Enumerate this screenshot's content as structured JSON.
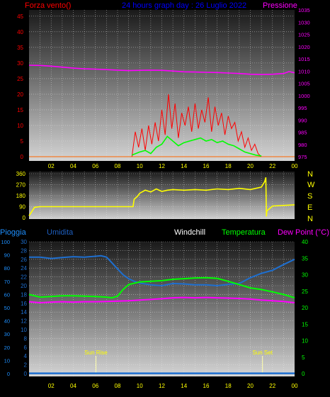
{
  "colors": {
    "wind": "#ff0000",
    "gust": "#00ff00",
    "pressure": "#ff00ff",
    "direction": "#ffff00",
    "humidity": "#1e6fd0",
    "windchill": "#ffffff",
    "temperature": "#00ff00",
    "dewpoint": "#ff00ff",
    "rain": "#1e6fd0",
    "title": "#0000ff",
    "grid": "#e8e8e8"
  },
  "chart_data": [
    {
      "type": "line",
      "panel": "wind-pressure",
      "title": "24 hours graph day : 26 Luglio 2022",
      "left_label": "Forza vento()",
      "right_label": "Pressione",
      "x_ticks": [
        "02",
        "04",
        "06",
        "08",
        "10",
        "12",
        "14",
        "16",
        "18",
        "20",
        "22",
        "00"
      ],
      "y_left_ticks": [
        "0",
        "5",
        "10",
        "15",
        "20",
        "25",
        "30",
        "35",
        "40",
        "45"
      ],
      "y_right_ticks": [
        "975",
        "980",
        "985",
        "990",
        "995",
        "1000",
        "1005",
        "1010",
        "1015",
        "1020",
        "1025",
        "1030",
        "1035"
      ],
      "y_left_range": [
        0,
        47
      ],
      "y_right_range": [
        975,
        1035
      ],
      "x_range": [
        0,
        24
      ],
      "grid": true,
      "series": [
        {
          "key": "pressure",
          "axis": "right",
          "x": [
            0,
            1,
            2,
            3,
            4,
            5,
            6,
            7,
            8,
            9,
            10,
            11,
            12,
            13,
            14,
            15,
            16,
            17,
            18,
            19,
            20,
            21,
            22,
            23,
            23.5,
            24
          ],
          "values": [
            1012.4,
            1012.3,
            1012.0,
            1011.6,
            1011.2,
            1010.9,
            1010.8,
            1010.6,
            1010.4,
            1010.2,
            1010.3,
            1010.4,
            1010.3,
            1010.0,
            1009.7,
            1009.6,
            1009.5,
            1009.4,
            1009.2,
            1009.0,
            1008.7,
            1008.6,
            1008.7,
            1009.0,
            1009.8,
            1009.3
          ]
        },
        {
          "key": "wind",
          "axis": "left",
          "x": [
            9.3,
            9.6,
            9.9,
            10.2,
            10.5,
            10.8,
            11.1,
            11.4,
            11.7,
            12.0,
            12.3,
            12.6,
            12.9,
            13.2,
            13.5,
            13.8,
            14.1,
            14.4,
            14.7,
            15.0,
            15.3,
            15.6,
            15.9,
            16.2,
            16.5,
            16.8,
            17.1,
            17.4,
            17.7,
            18.0,
            18.3,
            18.6,
            18.9,
            19.2,
            19.5,
            19.8,
            20.1,
            20.4,
            20.7,
            21.0
          ],
          "values": [
            0,
            8,
            3,
            9,
            2,
            10,
            4,
            11,
            5,
            15,
            7,
            20,
            9,
            17,
            6,
            14,
            10,
            16,
            8,
            17,
            9,
            15,
            11,
            19,
            8,
            16,
            10,
            14,
            7,
            13,
            9,
            11,
            5,
            8,
            3,
            6,
            2,
            4,
            1,
            0
          ]
        },
        {
          "key": "gust",
          "axis": "left",
          "x": [
            9.3,
            10,
            10.5,
            11,
            11.5,
            12,
            12.5,
            13,
            13.5,
            14,
            14.5,
            15,
            15.5,
            16,
            16.5,
            17,
            17.5,
            18,
            18.5,
            19,
            19.5,
            20,
            20.5,
            21
          ],
          "values": [
            0.5,
            1.5,
            2.0,
            1.0,
            3.0,
            4.0,
            6.5,
            5.0,
            3.5,
            4.5,
            5.0,
            5.5,
            6.0,
            5.0,
            5.5,
            4.5,
            5.0,
            4.0,
            3.5,
            2.5,
            1.5,
            1.0,
            0.5,
            0.2
          ]
        }
      ]
    },
    {
      "type": "line",
      "panel": "direction",
      "x_ticks": [
        "02",
        "04",
        "06",
        "08",
        "10",
        "12",
        "14",
        "16",
        "18",
        "20",
        "22",
        "00"
      ],
      "y_ticks": [
        "0",
        "90",
        "180",
        "270",
        "360"
      ],
      "y_range": [
        0,
        360
      ],
      "x_range": [
        0,
        24
      ],
      "compass_labels": [
        "N",
        "W",
        "S",
        "E",
        "N"
      ],
      "grid": true,
      "series": [
        {
          "key": "direction",
          "x": [
            0,
            0.5,
            1,
            2,
            3,
            4,
            5,
            6,
            7,
            8,
            9,
            9.4,
            9.5,
            9.8,
            10,
            10.5,
            11,
            11.5,
            12,
            12.5,
            13,
            14,
            15,
            16,
            17,
            18,
            19,
            20,
            21,
            21.3,
            21.4,
            21.45,
            21.5,
            22,
            24
          ],
          "values": [
            15,
            85,
            90,
            90,
            90,
            90,
            90,
            90,
            90,
            90,
            90,
            90,
            150,
            175,
            200,
            225,
            210,
            235,
            215,
            225,
            230,
            225,
            230,
            225,
            235,
            230,
            240,
            230,
            250,
            295,
            330,
            10,
            55,
            95,
            105
          ]
        }
      ]
    },
    {
      "type": "line",
      "panel": "humidity-temperature",
      "left_labels": [
        "Pioggia",
        "Umidita"
      ],
      "right_labels": [
        "Windchill",
        "Temperatura",
        "Dew Point (°C)"
      ],
      "x_ticks": [
        "02",
        "04",
        "06",
        "08",
        "10",
        "12",
        "14",
        "16",
        "18",
        "20",
        "22",
        "00"
      ],
      "y_rain_ticks": [
        "0",
        "10",
        "20",
        "30",
        "40",
        "50",
        "60",
        "70",
        "80",
        "90",
        "100"
      ],
      "y_hum_ticks": [
        "0",
        "2",
        "4",
        "6",
        "8",
        "10",
        "12",
        "14",
        "16",
        "18",
        "20",
        "22",
        "24",
        "26",
        "28",
        "30"
      ],
      "y_temp_ticks": [
        "0",
        "5",
        "10",
        "15",
        "20",
        "25",
        "30",
        "35",
        "40"
      ],
      "y_rain_range": [
        0,
        100
      ],
      "y_hum_range": [
        0,
        30
      ],
      "y_temp_range": [
        0,
        40
      ],
      "x_range": [
        0,
        24
      ],
      "grid": true,
      "annotations": [
        {
          "text": "Sun Rise",
          "x": 6.05
        },
        {
          "text": "Sun Set",
          "x": 21.1
        }
      ],
      "series": [
        {
          "key": "humidity",
          "axis": "hum",
          "x": [
            0,
            1,
            2,
            3,
            4,
            5,
            6,
            6.5,
            7,
            7.5,
            8,
            8.5,
            9,
            9.5,
            10,
            11,
            12,
            13,
            14,
            15,
            16,
            17,
            18,
            19,
            20,
            21,
            22,
            23,
            24
          ],
          "values": [
            26.5,
            26.5,
            26.2,
            26.4,
            26.6,
            26.5,
            26.7,
            26.8,
            26.5,
            25.2,
            23.8,
            22.5,
            21.6,
            21.0,
            20.6,
            20.2,
            20.0,
            20.5,
            20.4,
            20.2,
            20.2,
            20.0,
            20.3,
            20.5,
            21.8,
            22.8,
            23.5,
            24.8,
            26.0
          ]
        },
        {
          "key": "temperature",
          "axis": "temp",
          "x": [
            0,
            1,
            2,
            3,
            4,
            5,
            6,
            7,
            7.5,
            8,
            8.5,
            9,
            10,
            11,
            12,
            13,
            14,
            15,
            16,
            17,
            18,
            19,
            20,
            21,
            22,
            23,
            24
          ],
          "values": [
            24.0,
            23.2,
            23.4,
            23.6,
            23.6,
            23.5,
            23.4,
            23.2,
            23.0,
            23.5,
            25.5,
            27.0,
            27.8,
            28.0,
            28.2,
            28.6,
            28.8,
            29.0,
            29.1,
            28.9,
            28.0,
            27.0,
            26.0,
            25.5,
            24.8,
            24.0,
            23.0
          ]
        },
        {
          "key": "dewpoint",
          "axis": "temp",
          "x": [
            0,
            1,
            2,
            3,
            4,
            5,
            6,
            7,
            8,
            9,
            10,
            11,
            12,
            13,
            14,
            15,
            16,
            17,
            18,
            19,
            20,
            21,
            22,
            23,
            24
          ],
          "values": [
            21.8,
            21.5,
            21.7,
            21.8,
            21.7,
            21.8,
            21.8,
            21.9,
            22.0,
            22.1,
            22.3,
            22.5,
            22.7,
            23.0,
            23.1,
            23.0,
            23.1,
            23.0,
            22.9,
            22.8,
            22.6,
            22.3,
            22.1,
            21.9,
            21.5
          ]
        },
        {
          "key": "rain",
          "axis": "rain",
          "x": [
            0,
            24
          ],
          "values": [
            0.2,
            0.2
          ]
        }
      ]
    }
  ]
}
